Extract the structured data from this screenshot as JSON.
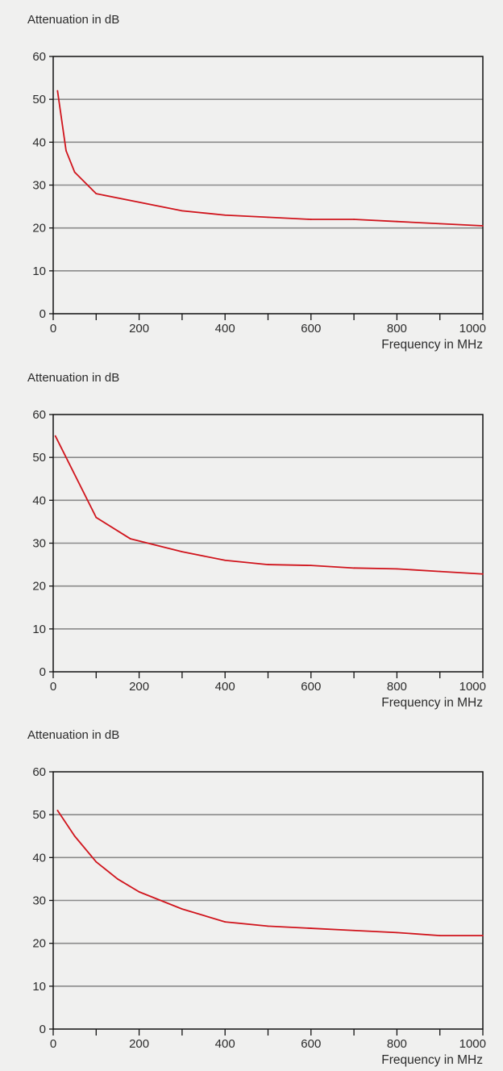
{
  "chart_data": [
    {
      "type": "line",
      "ylabel": "Attenuation in dB",
      "xlabel": "Frequency in MHz",
      "xlim": [
        0,
        1000
      ],
      "ylim": [
        0,
        60
      ],
      "xticks": [
        0,
        200,
        400,
        600,
        800,
        1000
      ],
      "yticks": [
        0,
        10,
        20,
        30,
        40,
        50,
        60
      ],
      "grid": "horizontal",
      "series": [
        {
          "color": "#d0141c",
          "x": [
            10,
            30,
            50,
            100,
            200,
            300,
            400,
            500,
            600,
            700,
            800,
            900,
            1000
          ],
          "y": [
            52,
            38,
            33,
            28,
            26,
            24,
            23,
            22.5,
            22,
            22,
            21.5,
            21,
            20.5
          ]
        }
      ]
    },
    {
      "type": "line",
      "ylabel": "Attenuation in dB",
      "xlabel": "Frequency in MHz",
      "xlim": [
        0,
        1000
      ],
      "ylim": [
        0,
        60
      ],
      "xticks": [
        0,
        200,
        400,
        600,
        800,
        1000
      ],
      "yticks": [
        0,
        10,
        20,
        30,
        40,
        50,
        60
      ],
      "grid": "horizontal",
      "series": [
        {
          "color": "#d0141c",
          "x": [
            5,
            100,
            180,
            300,
            400,
            500,
            600,
            700,
            800,
            900,
            1000
          ],
          "y": [
            55,
            36,
            31,
            28,
            26,
            25,
            24.8,
            24.2,
            24,
            23.4,
            22.8
          ]
        }
      ]
    },
    {
      "type": "line",
      "ylabel": "Attenuation in dB",
      "xlabel": "Frequency in MHz",
      "xlim": [
        0,
        1000
      ],
      "ylim": [
        0,
        60
      ],
      "xticks": [
        0,
        200,
        400,
        600,
        800,
        1000
      ],
      "yticks": [
        0,
        10,
        20,
        30,
        40,
        50,
        60
      ],
      "grid": "horizontal",
      "series": [
        {
          "color": "#d0141c",
          "x": [
            10,
            50,
            100,
            150,
            200,
            300,
            400,
            500,
            600,
            700,
            800,
            900,
            1000
          ],
          "y": [
            51,
            45,
            39,
            35,
            32,
            28,
            25,
            24,
            23.5,
            23,
            22.5,
            21.8,
            21.8
          ]
        }
      ]
    }
  ]
}
